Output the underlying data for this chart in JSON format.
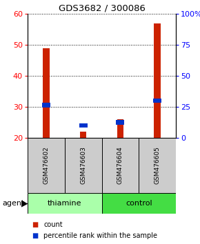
{
  "title": "GDS3682 / 300086",
  "samples": [
    "GSM476602",
    "GSM476603",
    "GSM476604",
    "GSM476605"
  ],
  "red_values": [
    49,
    22,
    26,
    57
  ],
  "blue_values": [
    30.5,
    24.0,
    25.0,
    32.0
  ],
  "left_ylim": [
    20,
    60
  ],
  "left_yticks": [
    20,
    30,
    40,
    50,
    60
  ],
  "right_ylim": [
    0,
    100
  ],
  "right_yticks": [
    0,
    25,
    50,
    75,
    100
  ],
  "right_yticklabels": [
    "0",
    "25",
    "50",
    "75",
    "100%"
  ],
  "red_color": "#CC2200",
  "blue_color": "#0033CC",
  "bar_bottom": 20,
  "red_bar_width": 0.18,
  "blue_bar_width": 0.22,
  "blue_bar_height": 1.5,
  "sample_area_color": "#CCCCCC",
  "thiamine_color": "#AAFFAA",
  "control_color": "#44DD44",
  "legend_count": "count",
  "legend_pct": "percentile rank within the sample"
}
